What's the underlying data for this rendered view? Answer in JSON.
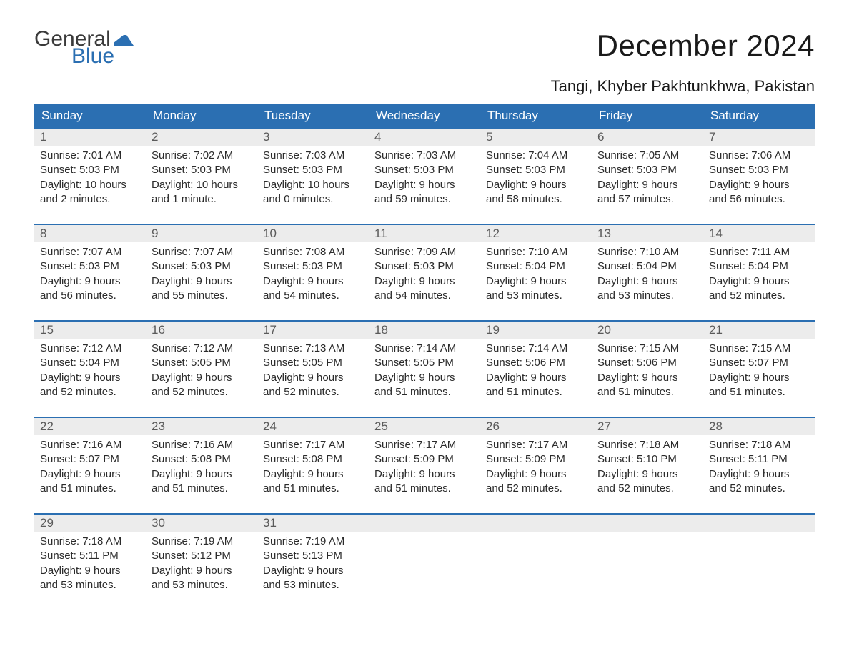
{
  "logo": {
    "text_general": "General",
    "text_blue": "Blue",
    "flag_color": "#2b6fb2",
    "general_color": "#3a3a3a",
    "blue_color": "#2b6fb2"
  },
  "header": {
    "month_title": "December 2024",
    "location": "Tangi, Khyber Pakhtunkhwa, Pakistan"
  },
  "colors": {
    "header_bar": "#2b6fb2",
    "week_border": "#2b6fb2",
    "daynum_bg": "#ececec",
    "daynum_text": "#5a5a5a",
    "body_text": "#2b2b2b",
    "page_bg": "#ffffff"
  },
  "typography": {
    "month_title_fontsize": 42,
    "location_fontsize": 22,
    "dow_fontsize": 17,
    "daynum_fontsize": 17,
    "body_fontsize": 15,
    "font_family": "Arial"
  },
  "calendar": {
    "type": "table",
    "days_of_week": [
      "Sunday",
      "Monday",
      "Tuesday",
      "Wednesday",
      "Thursday",
      "Friday",
      "Saturday"
    ],
    "weeks": [
      [
        {
          "day": "1",
          "sunrise": "Sunrise: 7:01 AM",
          "sunset": "Sunset: 5:03 PM",
          "daylight1": "Daylight: 10 hours",
          "daylight2": "and 2 minutes."
        },
        {
          "day": "2",
          "sunrise": "Sunrise: 7:02 AM",
          "sunset": "Sunset: 5:03 PM",
          "daylight1": "Daylight: 10 hours",
          "daylight2": "and 1 minute."
        },
        {
          "day": "3",
          "sunrise": "Sunrise: 7:03 AM",
          "sunset": "Sunset: 5:03 PM",
          "daylight1": "Daylight: 10 hours",
          "daylight2": "and 0 minutes."
        },
        {
          "day": "4",
          "sunrise": "Sunrise: 7:03 AM",
          "sunset": "Sunset: 5:03 PM",
          "daylight1": "Daylight: 9 hours",
          "daylight2": "and 59 minutes."
        },
        {
          "day": "5",
          "sunrise": "Sunrise: 7:04 AM",
          "sunset": "Sunset: 5:03 PM",
          "daylight1": "Daylight: 9 hours",
          "daylight2": "and 58 minutes."
        },
        {
          "day": "6",
          "sunrise": "Sunrise: 7:05 AM",
          "sunset": "Sunset: 5:03 PM",
          "daylight1": "Daylight: 9 hours",
          "daylight2": "and 57 minutes."
        },
        {
          "day": "7",
          "sunrise": "Sunrise: 7:06 AM",
          "sunset": "Sunset: 5:03 PM",
          "daylight1": "Daylight: 9 hours",
          "daylight2": "and 56 minutes."
        }
      ],
      [
        {
          "day": "8",
          "sunrise": "Sunrise: 7:07 AM",
          "sunset": "Sunset: 5:03 PM",
          "daylight1": "Daylight: 9 hours",
          "daylight2": "and 56 minutes."
        },
        {
          "day": "9",
          "sunrise": "Sunrise: 7:07 AM",
          "sunset": "Sunset: 5:03 PM",
          "daylight1": "Daylight: 9 hours",
          "daylight2": "and 55 minutes."
        },
        {
          "day": "10",
          "sunrise": "Sunrise: 7:08 AM",
          "sunset": "Sunset: 5:03 PM",
          "daylight1": "Daylight: 9 hours",
          "daylight2": "and 54 minutes."
        },
        {
          "day": "11",
          "sunrise": "Sunrise: 7:09 AM",
          "sunset": "Sunset: 5:03 PM",
          "daylight1": "Daylight: 9 hours",
          "daylight2": "and 54 minutes."
        },
        {
          "day": "12",
          "sunrise": "Sunrise: 7:10 AM",
          "sunset": "Sunset: 5:04 PM",
          "daylight1": "Daylight: 9 hours",
          "daylight2": "and 53 minutes."
        },
        {
          "day": "13",
          "sunrise": "Sunrise: 7:10 AM",
          "sunset": "Sunset: 5:04 PM",
          "daylight1": "Daylight: 9 hours",
          "daylight2": "and 53 minutes."
        },
        {
          "day": "14",
          "sunrise": "Sunrise: 7:11 AM",
          "sunset": "Sunset: 5:04 PM",
          "daylight1": "Daylight: 9 hours",
          "daylight2": "and 52 minutes."
        }
      ],
      [
        {
          "day": "15",
          "sunrise": "Sunrise: 7:12 AM",
          "sunset": "Sunset: 5:04 PM",
          "daylight1": "Daylight: 9 hours",
          "daylight2": "and 52 minutes."
        },
        {
          "day": "16",
          "sunrise": "Sunrise: 7:12 AM",
          "sunset": "Sunset: 5:05 PM",
          "daylight1": "Daylight: 9 hours",
          "daylight2": "and 52 minutes."
        },
        {
          "day": "17",
          "sunrise": "Sunrise: 7:13 AM",
          "sunset": "Sunset: 5:05 PM",
          "daylight1": "Daylight: 9 hours",
          "daylight2": "and 52 minutes."
        },
        {
          "day": "18",
          "sunrise": "Sunrise: 7:14 AM",
          "sunset": "Sunset: 5:05 PM",
          "daylight1": "Daylight: 9 hours",
          "daylight2": "and 51 minutes."
        },
        {
          "day": "19",
          "sunrise": "Sunrise: 7:14 AM",
          "sunset": "Sunset: 5:06 PM",
          "daylight1": "Daylight: 9 hours",
          "daylight2": "and 51 minutes."
        },
        {
          "day": "20",
          "sunrise": "Sunrise: 7:15 AM",
          "sunset": "Sunset: 5:06 PM",
          "daylight1": "Daylight: 9 hours",
          "daylight2": "and 51 minutes."
        },
        {
          "day": "21",
          "sunrise": "Sunrise: 7:15 AM",
          "sunset": "Sunset: 5:07 PM",
          "daylight1": "Daylight: 9 hours",
          "daylight2": "and 51 minutes."
        }
      ],
      [
        {
          "day": "22",
          "sunrise": "Sunrise: 7:16 AM",
          "sunset": "Sunset: 5:07 PM",
          "daylight1": "Daylight: 9 hours",
          "daylight2": "and 51 minutes."
        },
        {
          "day": "23",
          "sunrise": "Sunrise: 7:16 AM",
          "sunset": "Sunset: 5:08 PM",
          "daylight1": "Daylight: 9 hours",
          "daylight2": "and 51 minutes."
        },
        {
          "day": "24",
          "sunrise": "Sunrise: 7:17 AM",
          "sunset": "Sunset: 5:08 PM",
          "daylight1": "Daylight: 9 hours",
          "daylight2": "and 51 minutes."
        },
        {
          "day": "25",
          "sunrise": "Sunrise: 7:17 AM",
          "sunset": "Sunset: 5:09 PM",
          "daylight1": "Daylight: 9 hours",
          "daylight2": "and 51 minutes."
        },
        {
          "day": "26",
          "sunrise": "Sunrise: 7:17 AM",
          "sunset": "Sunset: 5:09 PM",
          "daylight1": "Daylight: 9 hours",
          "daylight2": "and 52 minutes."
        },
        {
          "day": "27",
          "sunrise": "Sunrise: 7:18 AM",
          "sunset": "Sunset: 5:10 PM",
          "daylight1": "Daylight: 9 hours",
          "daylight2": "and 52 minutes."
        },
        {
          "day": "28",
          "sunrise": "Sunrise: 7:18 AM",
          "sunset": "Sunset: 5:11 PM",
          "daylight1": "Daylight: 9 hours",
          "daylight2": "and 52 minutes."
        }
      ],
      [
        {
          "day": "29",
          "sunrise": "Sunrise: 7:18 AM",
          "sunset": "Sunset: 5:11 PM",
          "daylight1": "Daylight: 9 hours",
          "daylight2": "and 53 minutes."
        },
        {
          "day": "30",
          "sunrise": "Sunrise: 7:19 AM",
          "sunset": "Sunset: 5:12 PM",
          "daylight1": "Daylight: 9 hours",
          "daylight2": "and 53 minutes."
        },
        {
          "day": "31",
          "sunrise": "Sunrise: 7:19 AM",
          "sunset": "Sunset: 5:13 PM",
          "daylight1": "Daylight: 9 hours",
          "daylight2": "and 53 minutes."
        },
        {
          "empty": true
        },
        {
          "empty": true
        },
        {
          "empty": true
        },
        {
          "empty": true
        }
      ]
    ]
  }
}
